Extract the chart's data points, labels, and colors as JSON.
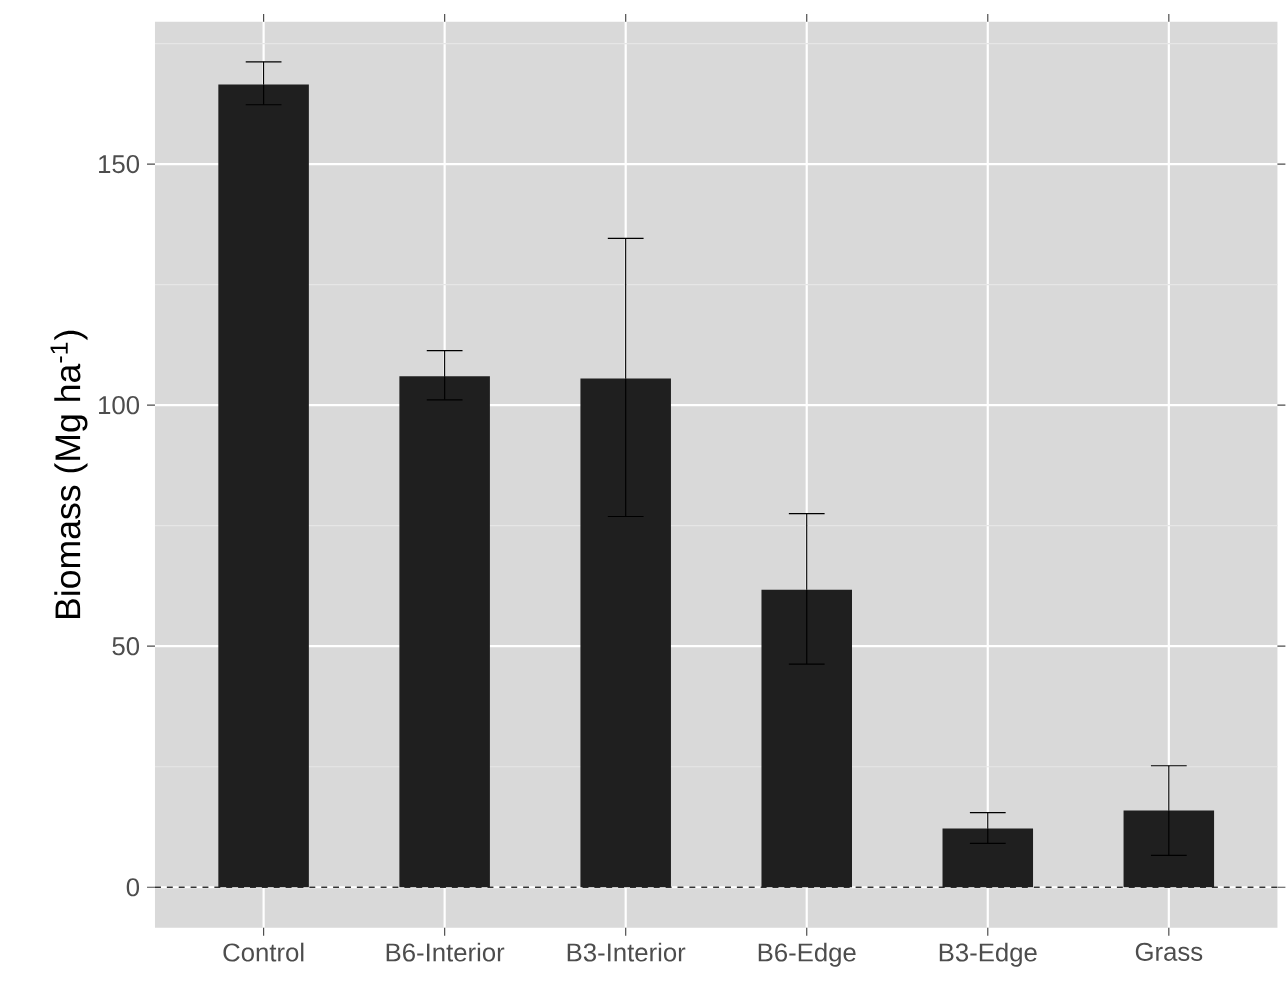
{
  "chart_data": {
    "type": "bar",
    "ylabel": "Biomass (Mg ha$^{-1}$)",
    "categories": [
      "Control",
      "B6-Interior",
      "B3-Interior",
      "B6-Edge",
      "B3-Edge",
      "Grass"
    ],
    "values": [
      166.5,
      106,
      105.5,
      61.7,
      12.2,
      15.9
    ],
    "errors": [
      [
        162.3,
        171.2
      ],
      [
        101.1,
        111.3
      ],
      [
        76.9,
        134.6
      ],
      [
        46.3,
        77.5
      ],
      [
        9.1,
        15.5
      ],
      [
        6.6,
        25.2
      ]
    ],
    "color": "#1f1f1f",
    "ylim": [
      -8.4,
      179.5
    ],
    "yticks": [
      0,
      50,
      100,
      150
    ],
    "grid": true,
    "ref_lines": [
      {
        "axis": "y",
        "value": 0,
        "color": "#333333",
        "line_style": "dashed"
      }
    ]
  }
}
